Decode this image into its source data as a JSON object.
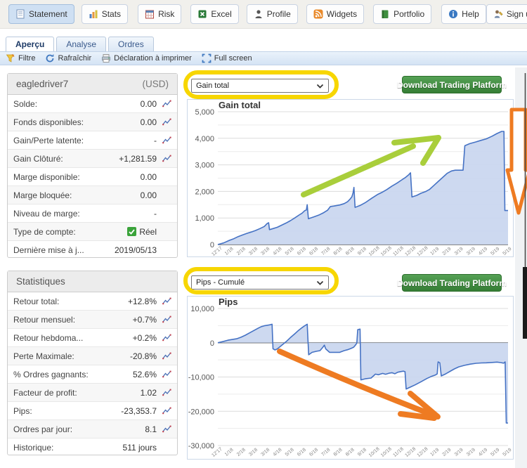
{
  "nav": {
    "buttons": [
      {
        "label": "Statement",
        "icon": "statement-icon",
        "selected": true
      },
      {
        "label": "Stats",
        "icon": "stats-icon"
      },
      {
        "label": "Risk",
        "icon": "risk-icon"
      },
      {
        "label": "Excel",
        "icon": "excel-icon"
      },
      {
        "label": "Profile",
        "icon": "profile-icon"
      },
      {
        "label": "Widgets",
        "icon": "widgets-icon"
      },
      {
        "label": "Portfolio",
        "icon": "portfolio-icon"
      },
      {
        "label": "Help",
        "icon": "help-icon"
      },
      {
        "label": "Sign up",
        "icon": "signup-icon"
      }
    ]
  },
  "tabs": [
    {
      "label": "Aperçu",
      "active": true
    },
    {
      "label": "Analyse",
      "active": false
    },
    {
      "label": "Ordres",
      "active": false
    }
  ],
  "toolbar": {
    "items": [
      {
        "label": "Filtre",
        "icon": "filter-icon"
      },
      {
        "label": "Rafraîchir",
        "icon": "refresh-icon"
      },
      {
        "label": "Déclaration à imprimer",
        "icon": "printer-icon"
      },
      {
        "label": "Full screen",
        "icon": "fullscreen-icon"
      }
    ]
  },
  "account": {
    "title": "eagledriver7",
    "currency": "(USD)",
    "rows": [
      {
        "label": "Solde:",
        "value": "0.00",
        "color": "default",
        "chart_icon": true
      },
      {
        "label": "Fonds disponibles:",
        "value": "0.00",
        "color": "default",
        "chart_icon": true
      },
      {
        "label": "Gain/Perte latente:",
        "value": "-",
        "color": "default",
        "chart_icon": true
      },
      {
        "label": "Gain Clôturé:",
        "value": "+1,281.59",
        "color": "green",
        "chart_icon": true
      },
      {
        "label": "Marge disponible:",
        "value": "0.00",
        "color": "default",
        "chart_icon": false
      },
      {
        "label": "Marge bloquée:",
        "value": "0.00",
        "color": "default",
        "chart_icon": false
      },
      {
        "label": "Niveau de marge:",
        "value": "-",
        "color": "default",
        "chart_icon": false
      },
      {
        "label": "Type de compte:",
        "value": "Réel",
        "color": "default",
        "chart_icon": false,
        "checkbox": true
      },
      {
        "label": "Dernière mise à j...",
        "value": "2019/05/13",
        "color": "default",
        "chart_icon": false
      }
    ]
  },
  "stats": {
    "title": "Statistiques",
    "rows": [
      {
        "label": "Retour total:",
        "value": "+12.8%",
        "color": "green",
        "chart_icon": true
      },
      {
        "label": "Retour mensuel:",
        "value": "+0.7%",
        "color": "green",
        "chart_icon": true
      },
      {
        "label": "Retour hebdoma...",
        "value": "+0.2%",
        "color": "green",
        "chart_icon": true
      },
      {
        "label": "Perte Maximale:",
        "value": "-20.8%",
        "color": "red",
        "chart_icon": true
      },
      {
        "label": "% Ordres gagnants:",
        "value": "52.6%",
        "color": "green",
        "chart_icon": true
      },
      {
        "label": "Facteur de profit:",
        "value": "1.02",
        "color": "green",
        "chart_icon": true
      },
      {
        "label": "Pips:",
        "value": "-23,353.7",
        "color": "default",
        "chart_icon": true
      },
      {
        "label": "Ordres par jour:",
        "value": "8.1",
        "color": "default",
        "chart_icon": true
      },
      {
        "label": "Historique:",
        "value": "511 jours",
        "color": "default",
        "chart_icon": false
      }
    ]
  },
  "controls": [
    {
      "dropdown": "Gain total",
      "button": "Download Trading Platform"
    },
    {
      "dropdown": "Pips - Cumulé",
      "button": "Download Trading Platform"
    }
  ],
  "colors": {
    "highlight_yellow": "#f7d602",
    "green_arrow": "#a9ce3b",
    "orange_arrow": "#ee7b22",
    "button_green": "#3f8f3f",
    "positive_green": "#2e9b2e",
    "negative_red": "#c43b3b"
  },
  "chart_data": [
    {
      "type": "area",
      "title": "Gain total",
      "xlabel": "",
      "ylabel": "",
      "ylim": [
        0,
        5000
      ],
      "ytick_step": 1000,
      "grid_step": 500,
      "grid": true,
      "line_color": "#4572c4",
      "fill_color": "#c9d6ef",
      "x_labels": [
        "12'17",
        "1/18",
        "2/18",
        "3/18",
        "3/18",
        "4/18",
        "5/18",
        "6/18",
        "6/18",
        "7/18",
        "8/18",
        "8/18",
        "9/18",
        "10/18",
        "10/18",
        "11/18",
        "12/18",
        "12/18",
        "1/19",
        "2/19",
        "3/19",
        "3/19",
        "4/19",
        "5/19",
        "5/19"
      ],
      "series": [
        {
          "name": "Gain total",
          "points": [
            [
              0,
              0
            ],
            [
              0.02,
              60
            ],
            [
              0.04,
              160
            ],
            [
              0.055,
              220
            ],
            [
              0.07,
              300
            ],
            [
              0.085,
              360
            ],
            [
              0.1,
              420
            ],
            [
              0.115,
              470
            ],
            [
              0.13,
              530
            ],
            [
              0.145,
              600
            ],
            [
              0.16,
              680
            ],
            [
              0.17,
              790
            ],
            [
              0.175,
              820
            ],
            [
              0.178,
              560
            ],
            [
              0.19,
              600
            ],
            [
              0.205,
              650
            ],
            [
              0.22,
              730
            ],
            [
              0.235,
              810
            ],
            [
              0.25,
              900
            ],
            [
              0.265,
              1000
            ],
            [
              0.28,
              1110
            ],
            [
              0.29,
              1180
            ],
            [
              0.3,
              1280
            ],
            [
              0.305,
              1300
            ],
            [
              0.308,
              1500
            ],
            [
              0.312,
              970
            ],
            [
              0.33,
              1040
            ],
            [
              0.35,
              1120
            ],
            [
              0.365,
              1200
            ],
            [
              0.378,
              1290
            ],
            [
              0.388,
              1430
            ],
            [
              0.4,
              1450
            ],
            [
              0.42,
              1490
            ],
            [
              0.435,
              1540
            ],
            [
              0.447,
              1610
            ],
            [
              0.455,
              1700
            ],
            [
              0.462,
              1800
            ],
            [
              0.466,
              1950
            ],
            [
              0.469,
              2150
            ],
            [
              0.473,
              1400
            ],
            [
              0.49,
              1470
            ],
            [
              0.51,
              1590
            ],
            [
              0.53,
              1740
            ],
            [
              0.55,
              1880
            ],
            [
              0.565,
              1960
            ],
            [
              0.582,
              2070
            ],
            [
              0.6,
              2200
            ],
            [
              0.617,
              2310
            ],
            [
              0.632,
              2420
            ],
            [
              0.647,
              2530
            ],
            [
              0.657,
              2620
            ],
            [
              0.664,
              2700
            ],
            [
              0.669,
              1790
            ],
            [
              0.685,
              1850
            ],
            [
              0.7,
              1930
            ],
            [
              0.715,
              1990
            ],
            [
              0.73,
              2080
            ],
            [
              0.745,
              2230
            ],
            [
              0.76,
              2380
            ],
            [
              0.775,
              2530
            ],
            [
              0.79,
              2680
            ],
            [
              0.805,
              2770
            ],
            [
              0.818,
              2800
            ],
            [
              0.845,
              2800
            ],
            [
              0.851,
              3720
            ],
            [
              0.868,
              3800
            ],
            [
              0.888,
              3860
            ],
            [
              0.906,
              3920
            ],
            [
              0.925,
              3980
            ],
            [
              0.945,
              4080
            ],
            [
              0.962,
              4180
            ],
            [
              0.978,
              4260
            ],
            [
              0.986,
              4260
            ],
            [
              0.989,
              1281
            ],
            [
              1,
              1281
            ]
          ]
        }
      ]
    },
    {
      "type": "area",
      "title": "Pips",
      "xlabel": "",
      "ylabel": "",
      "ylim": [
        -30000,
        10000
      ],
      "ytick_step": 10000,
      "grid_step": 5000,
      "grid": true,
      "line_color": "#4572c4",
      "fill_color": "#c9d6ef",
      "x_labels": [
        "12'17",
        "1/18",
        "2/18",
        "3/18",
        "3/18",
        "4/18",
        "5/18",
        "6/18",
        "6/18",
        "7/18",
        "8/18",
        "8/18",
        "9/18",
        "10/18",
        "10/18",
        "11/18",
        "12/18",
        "12/18",
        "1/19",
        "2/19",
        "3/19",
        "3/19",
        "4/19",
        "5/19",
        "5/19"
      ],
      "series": [
        {
          "name": "Pips - Cumulé",
          "points": [
            [
              0,
              0
            ],
            [
              0.02,
              400
            ],
            [
              0.035,
              750
            ],
            [
              0.05,
              950
            ],
            [
              0.065,
              1150
            ],
            [
              0.08,
              1600
            ],
            [
              0.095,
              2200
            ],
            [
              0.11,
              2900
            ],
            [
              0.125,
              3600
            ],
            [
              0.14,
              4300
            ],
            [
              0.15,
              4700
            ],
            [
              0.16,
              4950
            ],
            [
              0.17,
              5100
            ],
            [
              0.18,
              5250
            ],
            [
              0.187,
              5400
            ],
            [
              0.19,
              -1750
            ],
            [
              0.197,
              -2100
            ],
            [
              0.205,
              -1800
            ],
            [
              0.215,
              -1100
            ],
            [
              0.225,
              -400
            ],
            [
              0.235,
              300
            ],
            [
              0.25,
              1500
            ],
            [
              0.265,
              2600
            ],
            [
              0.278,
              3600
            ],
            [
              0.29,
              4400
            ],
            [
              0.3,
              5000
            ],
            [
              0.308,
              5400
            ],
            [
              0.313,
              -3500
            ],
            [
              0.325,
              -2800
            ],
            [
              0.34,
              -2500
            ],
            [
              0.352,
              -2300
            ],
            [
              0.362,
              -1300
            ],
            [
              0.367,
              -700
            ],
            [
              0.372,
              -1800
            ],
            [
              0.385,
              -2800
            ],
            [
              0.42,
              -2800
            ],
            [
              0.435,
              -2300
            ],
            [
              0.447,
              -2050
            ],
            [
              0.458,
              -1700
            ],
            [
              0.468,
              -1300
            ],
            [
              0.475,
              -600
            ],
            [
              0.479,
              -100
            ],
            [
              0.482,
              3800
            ],
            [
              0.49,
              4000
            ],
            [
              0.493,
              -10840
            ],
            [
              0.51,
              -10500
            ],
            [
              0.528,
              -10300
            ],
            [
              0.543,
              -9150
            ],
            [
              0.553,
              -9350
            ],
            [
              0.568,
              -8950
            ],
            [
              0.578,
              -9200
            ],
            [
              0.59,
              -8900
            ],
            [
              0.6,
              -8750
            ],
            [
              0.61,
              -9050
            ],
            [
              0.62,
              -8600
            ],
            [
              0.632,
              -8400
            ],
            [
              0.64,
              -8300
            ],
            [
              0.645,
              -8450
            ],
            [
              0.649,
              -13500
            ],
            [
              0.662,
              -13000
            ],
            [
              0.68,
              -12300
            ],
            [
              0.7,
              -11400
            ],
            [
              0.72,
              -10450
            ],
            [
              0.735,
              -9850
            ],
            [
              0.75,
              -9400
            ],
            [
              0.756,
              -9100
            ],
            [
              0.759,
              -5600
            ],
            [
              0.765,
              -5850
            ],
            [
              0.77,
              -9700
            ],
            [
              0.785,
              -9100
            ],
            [
              0.8,
              -8350
            ],
            [
              0.815,
              -7650
            ],
            [
              0.83,
              -7050
            ],
            [
              0.85,
              -6600
            ],
            [
              0.87,
              -6250
            ],
            [
              0.89,
              -6000
            ],
            [
              0.908,
              -5900
            ],
            [
              0.925,
              -5850
            ],
            [
              0.945,
              -5750
            ],
            [
              0.962,
              -5650
            ],
            [
              0.975,
              -5800
            ],
            [
              0.985,
              -5950
            ],
            [
              0.99,
              -5600
            ],
            [
              0.994,
              -23430
            ],
            [
              1,
              -23430
            ]
          ]
        }
      ]
    }
  ]
}
